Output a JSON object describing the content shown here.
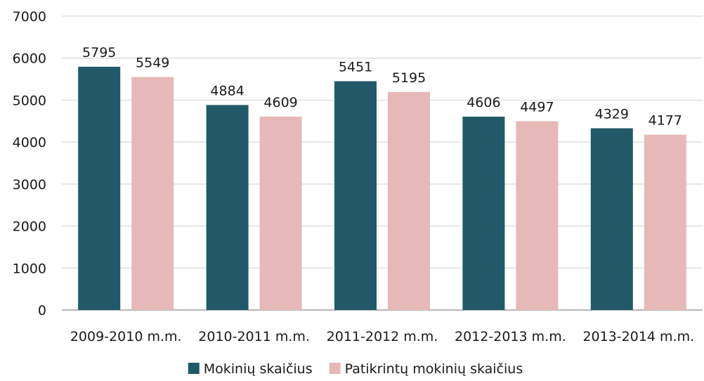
{
  "chart_data": {
    "type": "bar",
    "categories": [
      "2009-2010 m.m.",
      "2010-2011 m.m.",
      "2011-2012 m.m.",
      "2012-2013 m.m.",
      "2013-2014 m.m."
    ],
    "series": [
      {
        "name": "Mokinių skaičius",
        "values": [
          5795,
          4884,
          5451,
          4606,
          4329
        ],
        "color": "#215968"
      },
      {
        "name": "Patikrintų mokinių skaičius",
        "values": [
          5549,
          4609,
          5195,
          4497,
          4177
        ],
        "color": "#e6b9b8"
      }
    ],
    "ylim": [
      0,
      7000
    ],
    "yticks": [
      0,
      1000,
      2000,
      3000,
      4000,
      5000,
      6000,
      7000
    ],
    "grid": true,
    "legend": "bottom",
    "data_labels": true
  }
}
